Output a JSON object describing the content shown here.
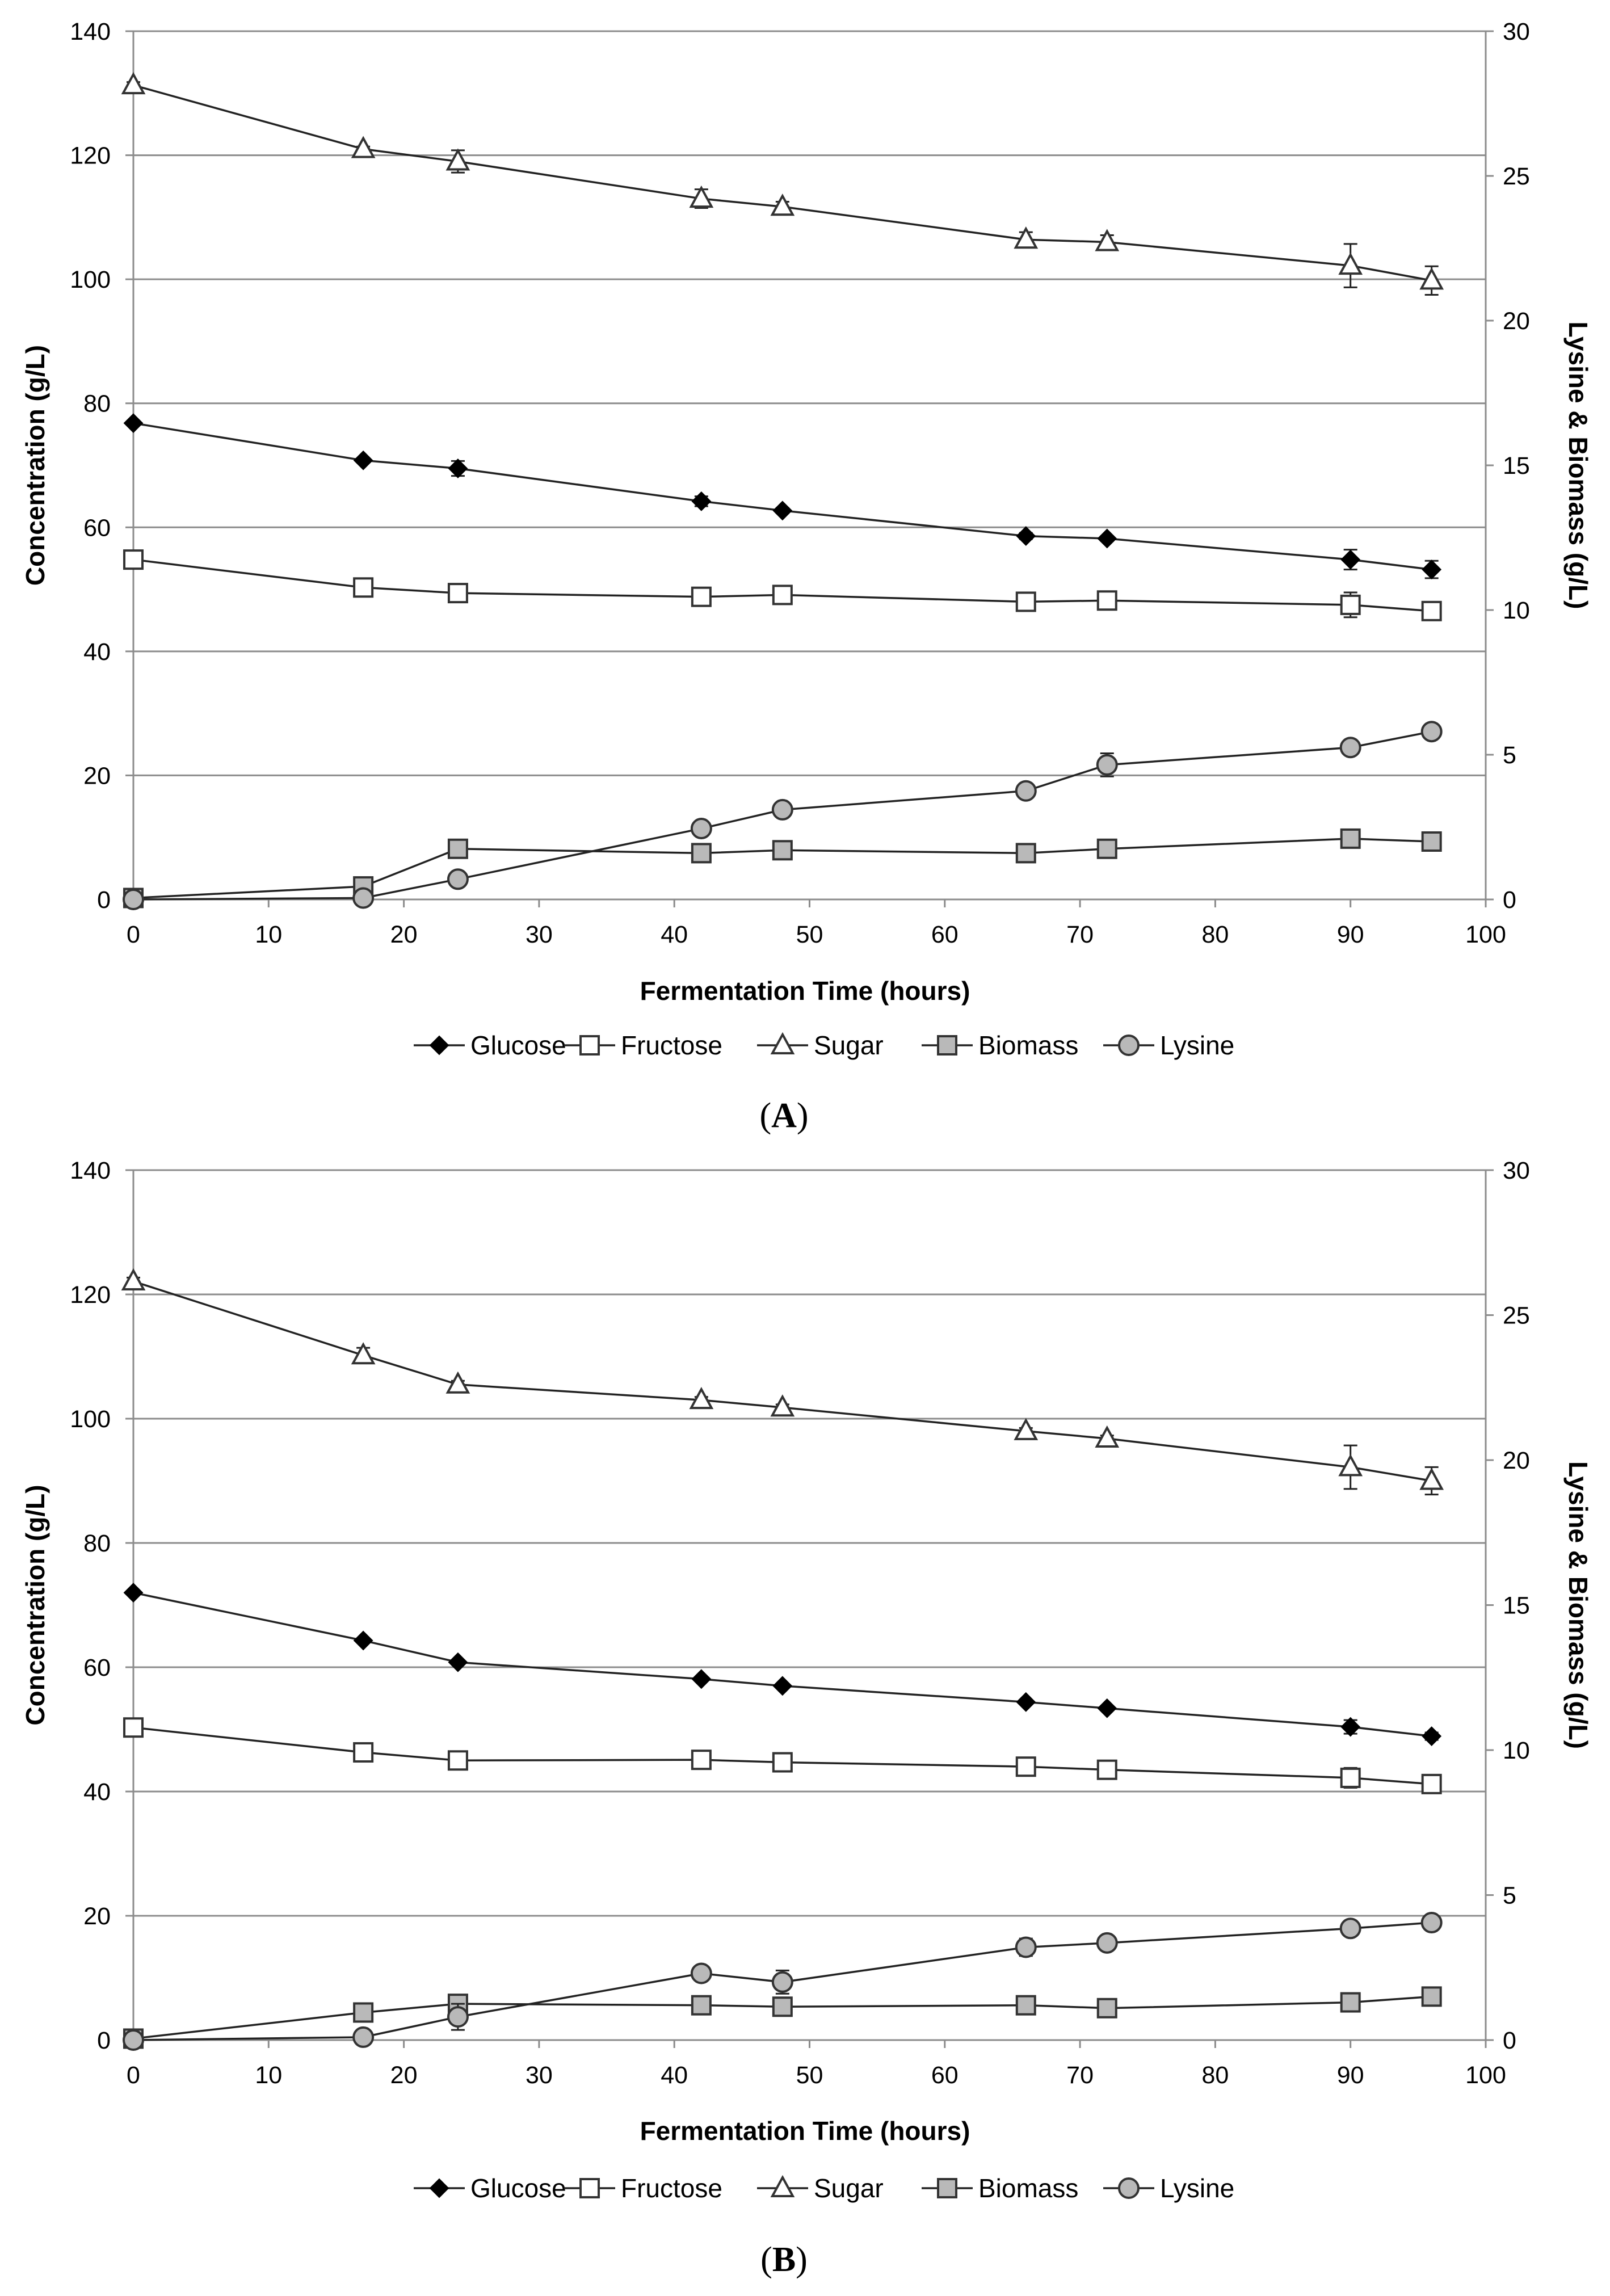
{
  "chart_data": [
    {
      "type": "line",
      "panel_label": "A",
      "title": "",
      "xlabel": "Fermentation Time (hours)",
      "ylabel": "Concentration (g/L)",
      "y2label": "Lysine & Biomass (g/L)",
      "xlim": [
        0,
        100
      ],
      "ylim": [
        0,
        140
      ],
      "y2lim": [
        0,
        30
      ],
      "xticks": [
        "0",
        "10",
        "20",
        "30",
        "40",
        "50",
        "60",
        "70",
        "80",
        "90",
        "100"
      ],
      "yticks": [
        "0",
        "20",
        "40",
        "60",
        "80",
        "100",
        "120",
        "140"
      ],
      "y2ticks": [
        "0",
        "5",
        "10",
        "15",
        "20",
        "25",
        "30"
      ],
      "grid": true,
      "legend_position": "bottom",
      "series": [
        {
          "name": "Glucose",
          "axis": "left",
          "marker": "diamond",
          "x": [
            0,
            17,
            24,
            42,
            48,
            66,
            72,
            90,
            96
          ],
          "y": [
            76.8,
            70.8,
            69.5,
            64.2,
            62.7,
            58.6,
            58.2,
            54.8,
            53.2
          ],
          "err": [
            0.3,
            0.3,
            1.2,
            0.8,
            0.4,
            0.5,
            0.4,
            1.6,
            1.4
          ]
        },
        {
          "name": "Fructose",
          "axis": "left",
          "marker": "square-open",
          "x": [
            0,
            17,
            24,
            42,
            48,
            66,
            72,
            90,
            96
          ],
          "y": [
            54.8,
            50.3,
            49.4,
            48.8,
            49.1,
            48.0,
            48.2,
            47.5,
            46.5
          ],
          "err": [
            0.3,
            0.3,
            0.4,
            0.4,
            0.4,
            0.4,
            0.4,
            2.0,
            0.8
          ]
        },
        {
          "name": "Sugar",
          "axis": "left",
          "marker": "triangle-open",
          "x": [
            0,
            17,
            24,
            42,
            48,
            66,
            72,
            90,
            96
          ],
          "y": [
            131.3,
            121.0,
            119.0,
            113.0,
            111.7,
            106.4,
            106.0,
            102.2,
            99.8
          ],
          "err": [
            0.5,
            0.4,
            1.8,
            1.5,
            0.8,
            1.2,
            1.1,
            3.5,
            2.3
          ]
        },
        {
          "name": "Biomass",
          "axis": "right",
          "marker": "square-gray",
          "x": [
            0,
            17,
            24,
            42,
            48,
            66,
            72,
            90,
            96
          ],
          "y": [
            0.05,
            0.45,
            1.75,
            1.6,
            1.7,
            1.6,
            1.75,
            2.1,
            2.0
          ],
          "err": [
            0.05,
            0.05,
            0.1,
            0.05,
            0.05,
            0.05,
            0.05,
            0.15,
            0.1
          ]
        },
        {
          "name": "Lysine",
          "axis": "right",
          "marker": "circle-gray",
          "x": [
            0,
            17,
            24,
            42,
            48,
            66,
            72,
            90,
            96
          ],
          "y": [
            0.0,
            0.05,
            0.7,
            2.45,
            3.1,
            3.75,
            4.65,
            5.25,
            5.8
          ],
          "err": [
            0.05,
            0.05,
            0.1,
            0.25,
            0.1,
            0.1,
            0.4,
            0.15,
            0.1
          ]
        }
      ]
    },
    {
      "type": "line",
      "panel_label": "B",
      "title": "",
      "xlabel": "Fermentation Time (hours)",
      "ylabel": "Concentration (g/L)",
      "y2label": "Lysine & Biomass (g/L)",
      "xlim": [
        0,
        100
      ],
      "ylim": [
        0,
        140
      ],
      "y2lim": [
        0,
        30
      ],
      "xticks": [
        "0",
        "10",
        "20",
        "30",
        "40",
        "50",
        "60",
        "70",
        "80",
        "90",
        "100"
      ],
      "yticks": [
        "0",
        "20",
        "40",
        "60",
        "80",
        "100",
        "120",
        "140"
      ],
      "y2ticks": [
        "0",
        "5",
        "10",
        "15",
        "20",
        "25",
        "30"
      ],
      "grid": true,
      "legend_position": "bottom",
      "series": [
        {
          "name": "Glucose",
          "axis": "left",
          "marker": "diamond",
          "x": [
            0,
            17,
            24,
            42,
            48,
            66,
            72,
            90,
            96
          ],
          "y": [
            72.0,
            64.3,
            60.8,
            58.1,
            57.0,
            54.4,
            53.4,
            50.4,
            48.9
          ],
          "err": [
            0.3,
            0.3,
            0.3,
            0.3,
            0.3,
            0.3,
            0.3,
            1.1,
            0.6
          ]
        },
        {
          "name": "Fructose",
          "axis": "left",
          "marker": "square-open",
          "x": [
            0,
            17,
            24,
            42,
            48,
            66,
            72,
            90,
            96
          ],
          "y": [
            50.3,
            46.3,
            45.0,
            45.1,
            44.7,
            44.0,
            43.5,
            42.2,
            41.2
          ],
          "err": [
            0.3,
            0.3,
            0.3,
            0.3,
            0.3,
            0.3,
            0.3,
            1.6,
            1.0
          ]
        },
        {
          "name": "Sugar",
          "axis": "left",
          "marker": "triangle-open",
          "x": [
            0,
            17,
            24,
            42,
            48,
            66,
            72,
            90,
            96
          ],
          "y": [
            122.1,
            110.2,
            105.5,
            103.0,
            101.8,
            98.0,
            96.8,
            92.2,
            90.0
          ],
          "err": [
            0.6,
            1.2,
            0.6,
            0.5,
            0.5,
            0.5,
            0.5,
            3.5,
            2.2
          ]
        },
        {
          "name": "Biomass",
          "axis": "right",
          "marker": "square-gray",
          "x": [
            0,
            17,
            24,
            42,
            48,
            66,
            72,
            90,
            96
          ],
          "y": [
            0.05,
            0.95,
            1.25,
            1.2,
            1.15,
            1.2,
            1.1,
            1.3,
            1.5
          ],
          "err": [
            0.05,
            0.05,
            0.1,
            0.05,
            0.05,
            0.05,
            0.05,
            0.05,
            0.05
          ]
        },
        {
          "name": "Lysine",
          "axis": "right",
          "marker": "circle-gray",
          "x": [
            0,
            17,
            24,
            42,
            48,
            66,
            72,
            90,
            96
          ],
          "y": [
            0.0,
            0.1,
            0.8,
            2.3,
            2.0,
            3.2,
            3.35,
            3.85,
            4.05
          ],
          "err": [
            0.05,
            0.05,
            0.45,
            0.1,
            0.4,
            0.3,
            0.1,
            0.1,
            0.1
          ]
        }
      ]
    }
  ]
}
